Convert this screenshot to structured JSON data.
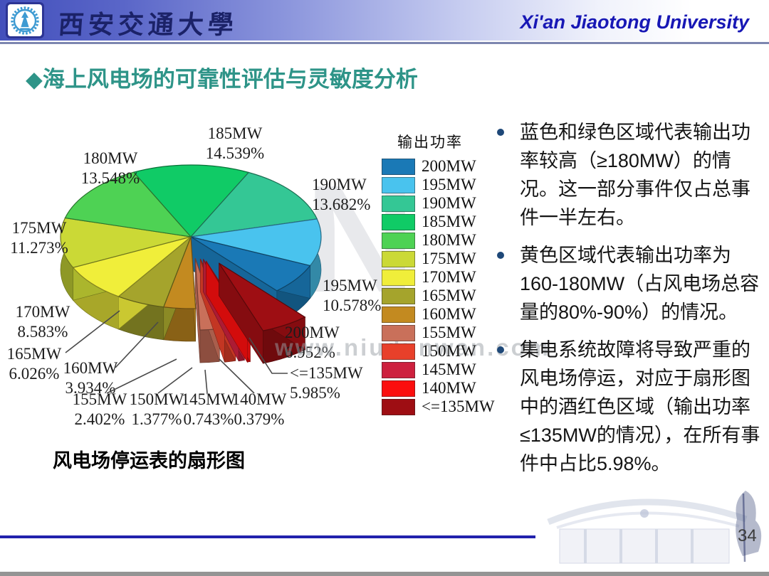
{
  "header": {
    "logo": "xjtu-gear-emblem",
    "university_cn": "西安交通大學",
    "university_en": "Xi'an Jiaotong University"
  },
  "slide": {
    "title_marker": "◆",
    "title": "海上风电场的可靠性评估与灵敏度分析",
    "caption": "风电场停运表的扇形图",
    "page_number": "34",
    "watermark_text": "www.niudunwan.com",
    "watermark_letter": "N"
  },
  "bullets": [
    "蓝色和绿色区域代表输出功率较高（≥180MW）的情况。这一部分事件仅占总事件一半左右。",
    "黄色区域代表输出功率为160-180MW（占风电场总容量的80%-90%）的情况。",
    "集电系统故障将导致严重的风电场停运，对应于扇形图中的酒红色区域（输出功率≤135MW的情况），在所有事件中占比5.98%。"
  ],
  "chart_data": {
    "type": "pie",
    "projection": "3d",
    "title": "风电场停运表的扇形图",
    "legend_title": "输出功率",
    "legend_position": "right",
    "value_unit": "%",
    "categories": [
      "200MW",
      "195MW",
      "190MW",
      "185MW",
      "180MW",
      "175MW",
      "170MW",
      "165MW",
      "160MW",
      "155MW",
      "150MW",
      "145MW",
      "140MW",
      "<=135MW"
    ],
    "values": [
      6.952,
      10.578,
      13.682,
      14.539,
      13.548,
      11.273,
      8.583,
      6.026,
      3.934,
      2.402,
      1.377,
      0.743,
      0.379,
      5.985
    ],
    "colors": [
      "#1a79b6",
      "#49c3ee",
      "#34c795",
      "#10cb66",
      "#4ed254",
      "#cbd936",
      "#f0ee3a",
      "#a5a42c",
      "#c38a20",
      "#c9705a",
      "#e8402a",
      "#cd203e",
      "#fb0e0e",
      "#9e0e13"
    ],
    "slice_order_clockwise_from_top": [
      "185MW",
      "190MW",
      "195MW",
      "200MW",
      "<=135MW",
      "140MW",
      "145MW",
      "150MW",
      "155MW",
      "160MW",
      "165MW",
      "170MW",
      "175MW",
      "180MW"
    ],
    "exploded_slices": [
      "<=135MW",
      "140MW",
      "145MW",
      "150MW",
      "155MW"
    ]
  }
}
